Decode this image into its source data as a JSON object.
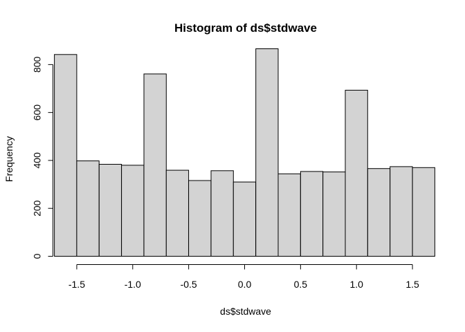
{
  "chart_data": {
    "type": "bar",
    "title": "Histogram of ds$stdwave",
    "xlabel": "ds$stdwave",
    "ylabel": "Frequency",
    "bin_edges": [
      -1.7,
      -1.5,
      -1.3,
      -1.1,
      -0.9,
      -0.7,
      -0.5,
      -0.3,
      -0.1,
      0.1,
      0.3,
      0.5,
      0.7,
      0.9,
      1.1,
      1.3,
      1.5,
      1.7
    ],
    "values": [
      842,
      398,
      384,
      380,
      761,
      359,
      316,
      357,
      310,
      866,
      344,
      354,
      352,
      693,
      366,
      374,
      370
    ],
    "xticks": [
      -1.5,
      -1.0,
      -0.5,
      0.0,
      0.5,
      1.0,
      1.5
    ],
    "xtick_labels": [
      "-1.5",
      "-1.0",
      "-0.5",
      "0.0",
      "0.5",
      "1.0",
      "1.5"
    ],
    "yticks": [
      0,
      200,
      400,
      600,
      800
    ],
    "ytick_labels": [
      "0",
      "200",
      "400",
      "600",
      "800"
    ],
    "xlim": [
      -1.75,
      1.75
    ],
    "ylim": [
      0,
      866
    ],
    "grid": false,
    "colors": {
      "bar_fill": "#d3d3d3",
      "bar_stroke": "#000000"
    }
  }
}
